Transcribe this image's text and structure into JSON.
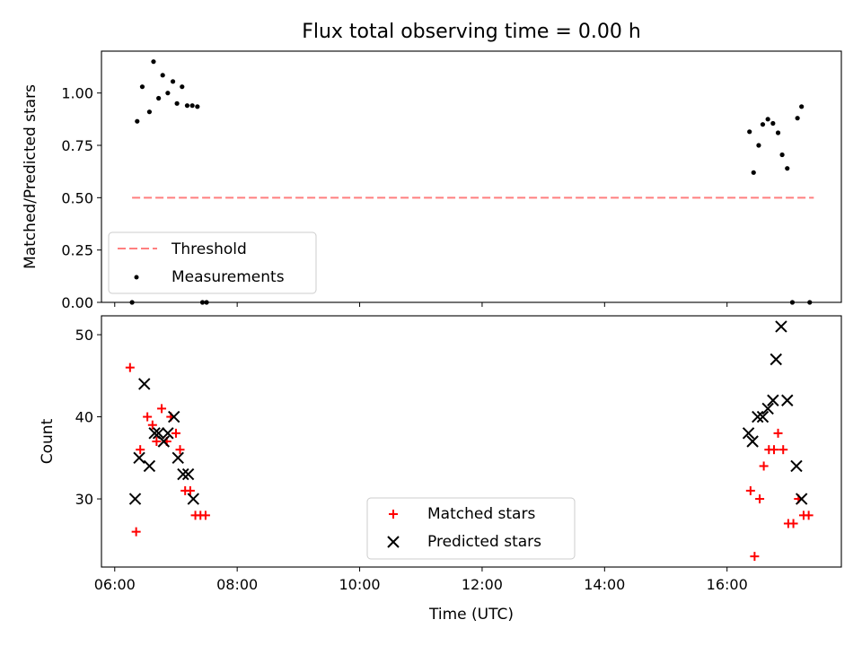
{
  "chart_data": [
    {
      "type": "scatter",
      "title": "Flux total observing time = 0.00 h",
      "xlabel": "",
      "ylabel": "Matched/Predicted stars",
      "xlim": [
        "05:47",
        "17:52"
      ],
      "ylim": [
        0.0,
        1.2
      ],
      "yticks": [
        0.0,
        0.25,
        0.5,
        0.75,
        1.0
      ],
      "ytick_labels": [
        "0.00",
        "0.25",
        "0.50",
        "0.75",
        "1.00"
      ],
      "legend": {
        "placement": "lower-left",
        "entries": [
          "Threshold",
          "Measurements"
        ]
      },
      "threshold": {
        "name": "Threshold",
        "y": 0.5,
        "x_range": [
          "06:17",
          "17:25"
        ],
        "color": "#ff7f7f",
        "style": "dashed"
      },
      "series": [
        {
          "name": "Measurements",
          "marker": "dot",
          "color": "#000000",
          "points": [
            {
              "x": "06:17",
              "y": 0.0
            },
            {
              "x": "06:22",
              "y": 0.865
            },
            {
              "x": "06:27",
              "y": 1.03
            },
            {
              "x": "06:34",
              "y": 0.91
            },
            {
              "x": "06:38",
              "y": 1.15
            },
            {
              "x": "06:43",
              "y": 0.975
            },
            {
              "x": "06:47",
              "y": 1.085
            },
            {
              "x": "06:52",
              "y": 1.0
            },
            {
              "x": "06:57",
              "y": 1.055
            },
            {
              "x": "07:01",
              "y": 0.95
            },
            {
              "x": "07:06",
              "y": 1.03
            },
            {
              "x": "07:11",
              "y": 0.94
            },
            {
              "x": "07:16",
              "y": 0.94
            },
            {
              "x": "07:21",
              "y": 0.935
            },
            {
              "x": "07:26",
              "y": 0.0
            },
            {
              "x": "07:30",
              "y": 0.0
            },
            {
              "x": "16:22",
              "y": 0.815
            },
            {
              "x": "16:26",
              "y": 0.62
            },
            {
              "x": "16:31",
              "y": 0.75
            },
            {
              "x": "16:35",
              "y": 0.85
            },
            {
              "x": "16:40",
              "y": 0.875
            },
            {
              "x": "16:45",
              "y": 0.855
            },
            {
              "x": "16:50",
              "y": 0.81
            },
            {
              "x": "16:54",
              "y": 0.705
            },
            {
              "x": "16:59",
              "y": 0.64
            },
            {
              "x": "17:04",
              "y": 0.0
            },
            {
              "x": "17:09",
              "y": 0.88
            },
            {
              "x": "17:13",
              "y": 0.935
            },
            {
              "x": "17:21",
              "y": 0.0
            }
          ]
        }
      ]
    },
    {
      "type": "scatter",
      "title": "",
      "xlabel": "Time (UTC)",
      "ylabel": "Count",
      "xlim": [
        "05:47",
        "17:52"
      ],
      "ylim": [
        21.7,
        52.3
      ],
      "yticks": [
        30,
        40,
        50
      ],
      "xticks": [
        "06:00",
        "08:00",
        "10:00",
        "12:00",
        "14:00",
        "16:00"
      ],
      "legend": {
        "placement": "lower-center",
        "entries": [
          "Matched stars",
          "Predicted stars"
        ]
      },
      "series": [
        {
          "name": "Matched stars",
          "marker": "plus",
          "color": "#ff0000",
          "points": [
            {
              "x": "06:15",
              "y": 46
            },
            {
              "x": "06:21",
              "y": 26
            },
            {
              "x": "06:25",
              "y": 36
            },
            {
              "x": "06:32",
              "y": 40
            },
            {
              "x": "06:37",
              "y": 39
            },
            {
              "x": "06:41",
              "y": 37
            },
            {
              "x": "06:46",
              "y": 41
            },
            {
              "x": "06:51",
              "y": 37
            },
            {
              "x": "06:55",
              "y": 40
            },
            {
              "x": "07:00",
              "y": 38
            },
            {
              "x": "07:04",
              "y": 36
            },
            {
              "x": "07:09",
              "y": 31
            },
            {
              "x": "07:14",
              "y": 31
            },
            {
              "x": "07:19",
              "y": 28
            },
            {
              "x": "07:24",
              "y": 28
            },
            {
              "x": "07:29",
              "y": 28
            },
            {
              "x": "16:23",
              "y": 31
            },
            {
              "x": "16:27",
              "y": 23
            },
            {
              "x": "16:32",
              "y": 30
            },
            {
              "x": "16:36",
              "y": 34
            },
            {
              "x": "16:41",
              "y": 36
            },
            {
              "x": "16:46",
              "y": 36
            },
            {
              "x": "16:50",
              "y": 38
            },
            {
              "x": "16:55",
              "y": 36
            },
            {
              "x": "17:00",
              "y": 27
            },
            {
              "x": "17:05",
              "y": 27
            },
            {
              "x": "17:10",
              "y": 30
            },
            {
              "x": "17:15",
              "y": 28
            },
            {
              "x": "17:20",
              "y": 28
            }
          ]
        },
        {
          "name": "Predicted stars",
          "marker": "x",
          "color": "#000000",
          "points": [
            {
              "x": "06:20",
              "y": 30
            },
            {
              "x": "06:24",
              "y": 35
            },
            {
              "x": "06:29",
              "y": 44
            },
            {
              "x": "06:34",
              "y": 34
            },
            {
              "x": "06:39",
              "y": 38
            },
            {
              "x": "06:43",
              "y": 38
            },
            {
              "x": "06:48",
              "y": 37
            },
            {
              "x": "06:52",
              "y": 38
            },
            {
              "x": "06:58",
              "y": 40
            },
            {
              "x": "07:02",
              "y": 35
            },
            {
              "x": "07:07",
              "y": 33
            },
            {
              "x": "07:12",
              "y": 33
            },
            {
              "x": "07:17",
              "y": 30
            },
            {
              "x": "16:21",
              "y": 38
            },
            {
              "x": "16:25",
              "y": 37
            },
            {
              "x": "16:30",
              "y": 40
            },
            {
              "x": "16:35",
              "y": 40
            },
            {
              "x": "16:40",
              "y": 41
            },
            {
              "x": "16:45",
              "y": 42
            },
            {
              "x": "16:48",
              "y": 47
            },
            {
              "x": "16:53",
              "y": 51
            },
            {
              "x": "16:59",
              "y": 42
            },
            {
              "x": "17:08",
              "y": 34
            },
            {
              "x": "17:13",
              "y": 30
            }
          ]
        }
      ]
    }
  ]
}
